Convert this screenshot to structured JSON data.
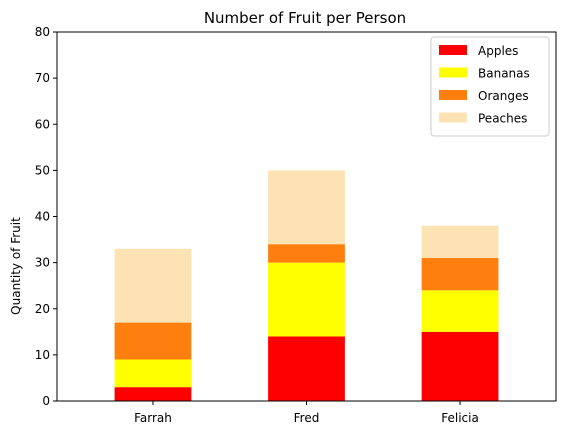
{
  "chart_data": {
    "type": "bar",
    "stacked": true,
    "title": "Number of Fruit per Person",
    "xlabel": "",
    "ylabel": "Quantity of Fruit",
    "categories": [
      "Farrah",
      "Fred",
      "Felicia"
    ],
    "ylim": [
      0,
      80
    ],
    "yticks": [
      0,
      10,
      20,
      30,
      40,
      50,
      60,
      70,
      80
    ],
    "grid": false,
    "legend_position": "top-right",
    "series": [
      {
        "name": "Apples",
        "color": "#ff0000",
        "values": [
          3,
          14,
          15
        ]
      },
      {
        "name": "Bananas",
        "color": "#ffff00",
        "values": [
          6,
          16,
          9
        ]
      },
      {
        "name": "Oranges",
        "color": "#ff7f0e",
        "values": [
          8,
          4,
          7
        ]
      },
      {
        "name": "Peaches",
        "color": "#fde3b4",
        "values": [
          16,
          16,
          7
        ]
      }
    ]
  }
}
